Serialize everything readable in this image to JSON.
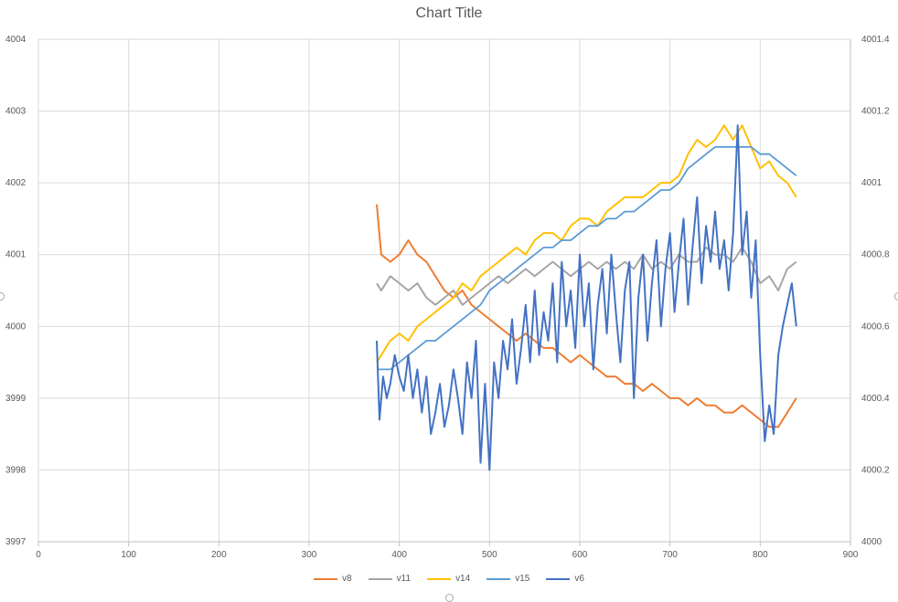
{
  "chart_data": {
    "type": "line",
    "title": "Chart Title",
    "xlabel": "",
    "ylabel": "",
    "xlim": [
      0,
      900
    ],
    "ylim": [
      3997,
      4004
    ],
    "y2lim": [
      4000,
      4001.4
    ],
    "x_ticks": [
      "0",
      "100",
      "200",
      "300",
      "400",
      "500",
      "600",
      "700",
      "800",
      "900"
    ],
    "y_ticks": [
      "3997",
      "3998",
      "3999",
      "4000",
      "4001",
      "4002",
      "4003",
      "4004"
    ],
    "y2_ticks": [
      "4000",
      "4000.2",
      "4000.4",
      "4000.6",
      "4000.8",
      "4001",
      "4001.2",
      "4001.4"
    ],
    "grid": true,
    "legend_position": "bottom",
    "series": [
      {
        "name": "v8",
        "color": "#ED7D31",
        "axis": "left",
        "x": [
          375,
          380,
          390,
          400,
          410,
          420,
          430,
          440,
          450,
          460,
          470,
          480,
          490,
          500,
          510,
          520,
          530,
          540,
          550,
          560,
          570,
          580,
          590,
          600,
          610,
          620,
          630,
          640,
          650,
          660,
          670,
          680,
          690,
          700,
          710,
          720,
          730,
          740,
          750,
          760,
          770,
          780,
          790,
          800,
          810,
          820,
          830,
          840
        ],
        "y": [
          4001.7,
          4001.0,
          4000.9,
          4001.0,
          4001.2,
          4001.0,
          4000.9,
          4000.7,
          4000.5,
          4000.4,
          4000.5,
          4000.3,
          4000.2,
          4000.1,
          4000.0,
          3999.9,
          3999.8,
          3999.9,
          3999.8,
          3999.7,
          3999.7,
          3999.6,
          3999.5,
          3999.6,
          3999.5,
          3999.4,
          3999.3,
          3999.3,
          3999.2,
          3999.2,
          3999.1,
          3999.2,
          3999.1,
          3999.0,
          3999.0,
          3998.9,
          3999.0,
          3998.9,
          3998.9,
          3998.8,
          3998.8,
          3998.9,
          3998.8,
          3998.7,
          3998.6,
          3998.6,
          3998.8,
          3999.0
        ]
      },
      {
        "name": "v11",
        "color": "#A5A5A5",
        "axis": "left",
        "x": [
          375,
          380,
          390,
          400,
          410,
          420,
          430,
          440,
          450,
          460,
          470,
          480,
          490,
          500,
          510,
          520,
          530,
          540,
          550,
          560,
          570,
          580,
          590,
          600,
          610,
          620,
          630,
          640,
          650,
          660,
          670,
          680,
          690,
          700,
          710,
          720,
          730,
          740,
          750,
          760,
          770,
          780,
          790,
          800,
          810,
          820,
          830,
          840
        ],
        "y": [
          4000.6,
          4000.5,
          4000.7,
          4000.6,
          4000.5,
          4000.6,
          4000.4,
          4000.3,
          4000.4,
          4000.5,
          4000.3,
          4000.4,
          4000.5,
          4000.6,
          4000.7,
          4000.6,
          4000.7,
          4000.8,
          4000.7,
          4000.8,
          4000.9,
          4000.8,
          4000.7,
          4000.8,
          4000.9,
          4000.8,
          4000.9,
          4000.8,
          4000.9,
          4000.8,
          4001.0,
          4000.8,
          4000.9,
          4000.8,
          4001.0,
          4000.9,
          4000.9,
          4001.1,
          4001.0,
          4001.0,
          4000.9,
          4001.1,
          4000.9,
          4000.6,
          4000.7,
          4000.5,
          4000.8,
          4000.9
        ]
      },
      {
        "name": "v14",
        "color": "#FFC000",
        "axis": "left",
        "x": [
          375,
          380,
          390,
          400,
          410,
          420,
          430,
          440,
          450,
          460,
          470,
          480,
          490,
          500,
          510,
          520,
          530,
          540,
          550,
          560,
          570,
          580,
          590,
          600,
          610,
          620,
          630,
          640,
          650,
          660,
          670,
          680,
          690,
          700,
          710,
          720,
          730,
          740,
          750,
          760,
          770,
          780,
          790,
          800,
          810,
          820,
          830,
          840
        ],
        "y": [
          3999.5,
          3999.6,
          3999.8,
          3999.9,
          3999.8,
          4000.0,
          4000.1,
          4000.2,
          4000.3,
          4000.4,
          4000.6,
          4000.5,
          4000.7,
          4000.8,
          4000.9,
          4001.0,
          4001.1,
          4001.0,
          4001.2,
          4001.3,
          4001.3,
          4001.2,
          4001.4,
          4001.5,
          4001.5,
          4001.4,
          4001.6,
          4001.7,
          4001.8,
          4001.8,
          4001.8,
          4001.9,
          4002.0,
          4002.0,
          4002.1,
          4002.4,
          4002.6,
          4002.5,
          4002.6,
          4002.8,
          4002.6,
          4002.8,
          4002.5,
          4002.2,
          4002.3,
          4002.1,
          4002.0,
          4001.8
        ]
      },
      {
        "name": "v15",
        "color": "#5B9BD5",
        "axis": "left",
        "x": [
          375,
          380,
          390,
          400,
          410,
          420,
          430,
          440,
          450,
          460,
          470,
          480,
          490,
          500,
          510,
          520,
          530,
          540,
          550,
          560,
          570,
          580,
          590,
          600,
          610,
          620,
          630,
          640,
          650,
          660,
          670,
          680,
          690,
          700,
          710,
          720,
          730,
          740,
          750,
          760,
          770,
          780,
          790,
          800,
          810,
          820,
          830,
          840
        ],
        "y": [
          3999.4,
          3999.4,
          3999.4,
          3999.5,
          3999.6,
          3999.7,
          3999.8,
          3999.8,
          3999.9,
          4000.0,
          4000.1,
          4000.2,
          4000.3,
          4000.5,
          4000.6,
          4000.7,
          4000.8,
          4000.9,
          4001.0,
          4001.1,
          4001.1,
          4001.2,
          4001.2,
          4001.3,
          4001.4,
          4001.4,
          4001.5,
          4001.5,
          4001.6,
          4001.6,
          4001.7,
          4001.8,
          4001.9,
          4001.9,
          4002.0,
          4002.2,
          4002.3,
          4002.4,
          4002.5,
          4002.5,
          4002.5,
          4002.5,
          4002.5,
          4002.4,
          4002.4,
          4002.3,
          4002.2,
          4002.1
        ]
      },
      {
        "name": "v6",
        "color": "#4472C4",
        "axis": "left",
        "x": [
          375,
          378,
          382,
          386,
          390,
          395,
          400,
          405,
          410,
          415,
          420,
          425,
          430,
          435,
          440,
          445,
          450,
          455,
          460,
          465,
          470,
          475,
          480,
          485,
          490,
          495,
          500,
          505,
          510,
          515,
          520,
          525,
          530,
          535,
          540,
          545,
          550,
          555,
          560,
          565,
          570,
          575,
          580,
          585,
          590,
          595,
          600,
          605,
          610,
          615,
          620,
          625,
          630,
          635,
          640,
          645,
          650,
          655,
          660,
          665,
          670,
          675,
          680,
          685,
          690,
          695,
          700,
          705,
          710,
          715,
          720,
          725,
          730,
          735,
          740,
          745,
          750,
          755,
          760,
          765,
          770,
          775,
          780,
          785,
          790,
          795,
          800,
          805,
          810,
          815,
          820,
          825,
          830,
          835,
          840
        ],
        "y": [
          3999.8,
          3998.7,
          3999.3,
          3999.0,
          3999.2,
          3999.6,
          3999.3,
          3999.1,
          3999.6,
          3999.0,
          3999.4,
          3998.8,
          3999.3,
          3998.5,
          3998.8,
          3999.2,
          3998.6,
          3998.9,
          3999.4,
          3999.0,
          3998.5,
          3999.5,
          3999.0,
          3999.8,
          3998.1,
          3999.2,
          3998.0,
          3999.5,
          3999.0,
          3999.8,
          3999.4,
          4000.1,
          3999.2,
          3999.7,
          4000.3,
          3999.5,
          4000.5,
          3999.6,
          4000.2,
          3999.8,
          4000.6,
          3999.5,
          4000.9,
          4000.0,
          4000.5,
          3999.7,
          4001.0,
          4000.0,
          4000.6,
          3999.4,
          4000.3,
          4000.8,
          3999.9,
          4001.0,
          4000.2,
          3999.5,
          4000.5,
          4000.9,
          3999.0,
          4000.4,
          4001.0,
          3999.8,
          4000.6,
          4001.2,
          4000.0,
          4000.8,
          4001.3,
          4000.2,
          4000.9,
          4001.5,
          4000.3,
          4001.1,
          4001.8,
          4000.6,
          4001.4,
          4000.9,
          4001.6,
          4000.8,
          4001.2,
          4000.5,
          4001.3,
          4002.8,
          4001.0,
          4001.6,
          4000.4,
          4001.2,
          3999.6,
          3998.4,
          3998.9,
          3998.5,
          3999.6,
          4000.0,
          4000.3,
          4000.6,
          4000.0
        ]
      }
    ]
  }
}
